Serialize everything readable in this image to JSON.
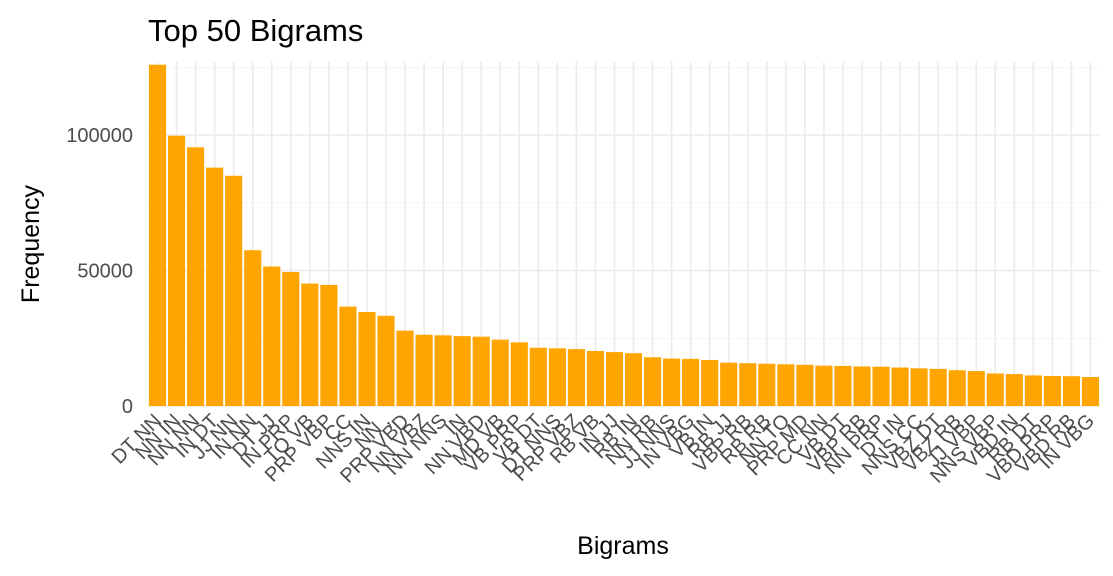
{
  "chart_data": {
    "type": "bar",
    "title": "Top 50 Bigrams",
    "xlabel": "Bigrams",
    "ylabel": "Frequency",
    "ylim": [
      0,
      127000
    ],
    "yticks": [
      0,
      50000,
      100000
    ],
    "ytick_labels": [
      "0",
      "50000",
      "100000"
    ],
    "grid": true,
    "legend": "none",
    "bar_color": "#ffa500",
    "categories": [
      "DT NN",
      "NN IN",
      "NN NN",
      "IN DT",
      "JJ NN",
      "IN NN",
      "DT JJ",
      "IN PRP",
      "TO VB",
      "PRP VBP",
      ", CC",
      "NNS IN",
      "NN ,",
      "PRP VBD",
      "NN VBZ",
      "NN NNS",
      ". IN",
      "NN VBD",
      "MD VB",
      "VB PRP",
      "VB DT",
      "DT NNS",
      "PRP VBZ",
      "RB VB",
      "IN JJ",
      "RB IN",
      "NN RB",
      "JJ NNS",
      "IN VBG",
      "VB IN",
      "RB JJ",
      "VBP RB",
      "RB RB",
      "NN TO",
      "PRP MD",
      "CC NN",
      "VB DT2",
      "VBP RB2",
      "NN PRP",
      "DT IN",
      "NNS CC",
      "VBZ DT",
      "VBZ RB",
      "JJ VBP",
      "NNS VBP",
      "VBD IN",
      "RB DT",
      "VBD PRP",
      "VBD RB",
      "IN VBG"
    ],
    "category_labels": [
      "DT NN",
      "NN IN",
      "NN NN",
      "IN DT",
      "JJ NN",
      "IN NN",
      "DT JJ",
      "IN PRP",
      "TO VB",
      "PRP VBP",
      ", CC",
      "NNS IN",
      "NN ,",
      "PRP VBD",
      "NN VBZ",
      "NN NNS",
      ". IN",
      "NN VBD",
      "MD VB",
      "VB PRP",
      "VB DT",
      "DT NNS",
      "PRP VBZ",
      "RB VB",
      "IN JJ",
      "RB IN",
      "NN RB",
      "JJ NNS",
      "IN VBG",
      "VB IN",
      "RB JJ",
      "VBP RB",
      "RB RB",
      "NN TO",
      "PRP MD",
      "CC NN",
      "VB DT",
      "VBP RB",
      "NN PRP",
      "DT IN",
      "NNS CC",
      "VBZ DT",
      "VBZ RB",
      "JJ VBP",
      "NNS VBP",
      "VBD IN",
      "RB DT",
      "VBD PRP",
      "VBD RB",
      "IN VBG"
    ],
    "values": [
      126000,
      99800,
      95500,
      88000,
      85000,
      57500,
      51500,
      49500,
      45200,
      44700,
      36700,
      34700,
      33300,
      27800,
      26300,
      26100,
      25800,
      25600,
      24500,
      23500,
      21500,
      21300,
      21000,
      20300,
      19900,
      19500,
      18000,
      17500,
      17400,
      17000,
      16000,
      15800,
      15600,
      15400,
      15200,
      14900,
      14800,
      14600,
      14500,
      14200,
      13900,
      13700,
      13200,
      12900,
      12000,
      11800,
      11300,
      11100,
      11000,
      10700
    ]
  }
}
